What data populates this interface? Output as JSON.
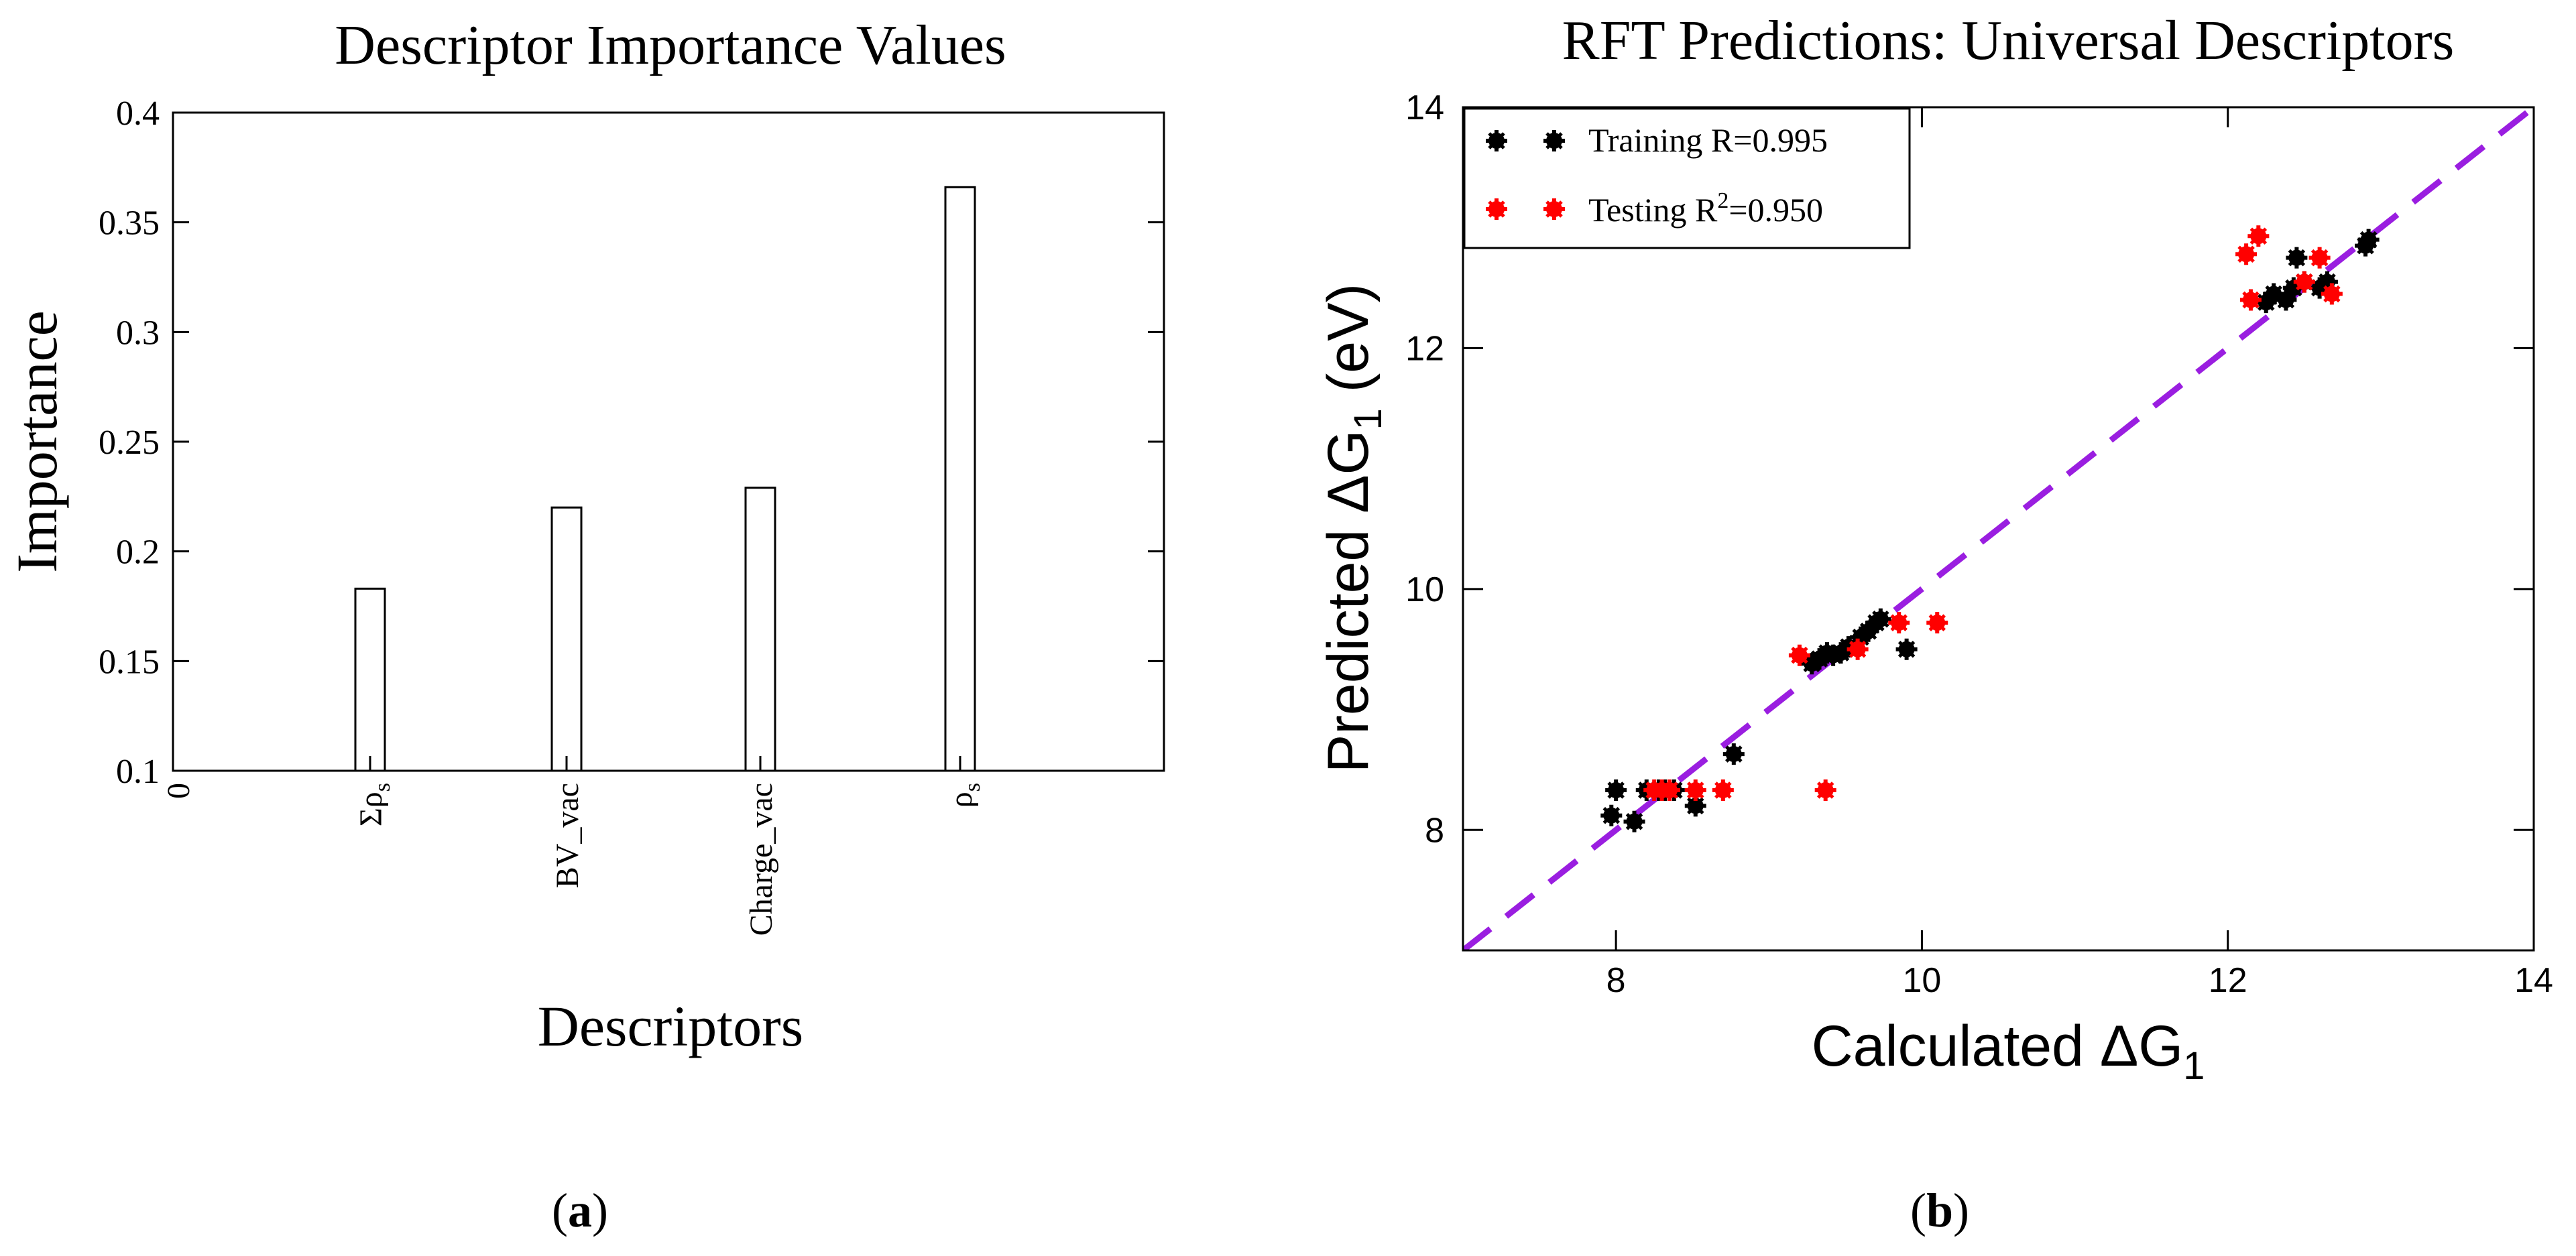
{
  "chart_data": [
    {
      "panel": "(a)",
      "type": "bar",
      "title": "Descriptor Importance Values",
      "xlabel": "Descriptors",
      "ylabel": "Importance",
      "categories": [
        "Σρs",
        "BV_vac",
        "Charge_vac",
        "ρs"
      ],
      "category_labels": [
        {
          "main": "Σρ",
          "sub": "s"
        },
        {
          "main": "BV_vac",
          "sub": ""
        },
        {
          "main": "Charge_vac",
          "sub": ""
        },
        {
          "main": "ρ",
          "sub": "s"
        }
      ],
      "x_origin_label": "0",
      "values": [
        0.183,
        0.22,
        0.229,
        0.366
      ],
      "ylim": [
        0.1,
        0.4
      ],
      "yticks": [
        "0.1",
        "0.15",
        "0.2",
        "0.25",
        "0.3",
        "0.35",
        "0.4"
      ],
      "grid": false
    },
    {
      "panel": "(b)",
      "type": "scatter",
      "title": "RFT Predictions: Universal Descriptors",
      "xlabel": {
        "main": "Calculated ΔG",
        "sub": "1"
      },
      "ylabel": {
        "main": "Predicted ΔG",
        "sub": "1",
        "tail": " (eV)"
      },
      "xlim": [
        7,
        14
      ],
      "ylim": [
        7,
        14
      ],
      "xticks": [
        "8",
        "10",
        "12",
        "14"
      ],
      "yticks": [
        "8",
        "10",
        "12",
        "14"
      ],
      "legend_position": "top-left",
      "series": [
        {
          "name": "Training",
          "legend": {
            "pre": "Training R=0.995",
            "sup": "",
            "post": ""
          },
          "color": "#000000",
          "x": [
            7.97,
            8.0,
            8.12,
            8.2,
            8.28,
            8.32,
            8.38,
            8.52,
            8.77,
            9.28,
            9.33,
            9.38,
            9.42,
            9.47,
            9.52,
            9.6,
            9.65,
            9.7,
            9.73,
            9.9,
            12.25,
            12.3,
            12.38,
            12.43,
            12.45,
            12.5,
            12.6,
            12.65,
            12.9,
            12.92
          ],
          "y": [
            8.12,
            8.33,
            8.07,
            8.33,
            8.33,
            8.33,
            8.33,
            8.2,
            8.63,
            9.38,
            9.42,
            9.47,
            9.45,
            9.47,
            9.52,
            9.6,
            9.65,
            9.72,
            9.75,
            9.5,
            12.38,
            12.45,
            12.4,
            12.5,
            12.75,
            12.55,
            12.5,
            12.55,
            12.85,
            12.9
          ]
        },
        {
          "name": "Testing",
          "legend": {
            "pre": "Testing R",
            "sup": "2",
            "post": "=0.950"
          },
          "color": "#ff0000",
          "x": [
            8.25,
            8.3,
            8.35,
            8.52,
            8.7,
            9.2,
            9.37,
            9.58,
            9.85,
            10.1,
            12.12,
            12.15,
            12.2,
            12.5,
            12.6,
            12.68
          ],
          "y": [
            8.33,
            8.33,
            8.33,
            8.33,
            8.33,
            9.45,
            8.33,
            9.5,
            9.72,
            9.72,
            12.78,
            12.4,
            12.93,
            12.55,
            12.75,
            12.45
          ]
        }
      ],
      "reference_line": {
        "x": [
          7,
          14
        ],
        "y": [
          7,
          14
        ],
        "color": "#9a1ee0",
        "style": "dashed"
      }
    }
  ]
}
